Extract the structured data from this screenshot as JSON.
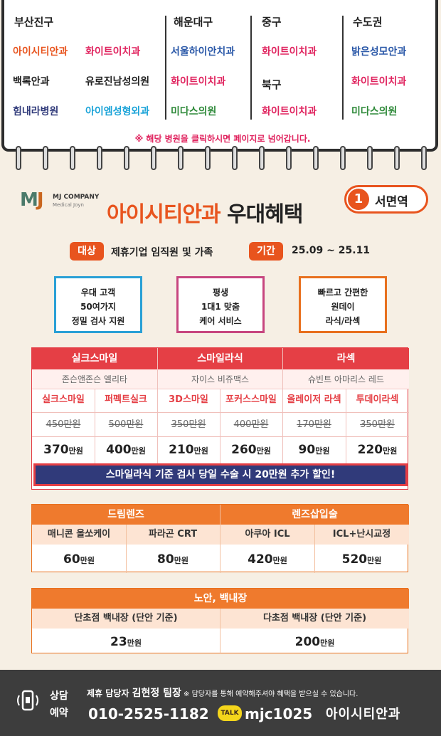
{
  "directory": {
    "columns": [
      {
        "region": "부산진구",
        "hospitals": [
          {
            "name": "아이시티안과",
            "color": "#e8541e"
          },
          {
            "name": "화이트이치과",
            "color": "#e0245f"
          },
          {
            "name": "백록안과",
            "color": "#222222"
          },
          {
            "name": "유로진남성의원",
            "color": "#222222"
          },
          {
            "name": "힘내라병원",
            "color": "#303a7a"
          },
          {
            "name": "아이엠성형외과",
            "color": "#1aa3d8"
          }
        ]
      },
      {
        "region": "해운대구",
        "hospitals": [
          {
            "name": "서울하이안치과",
            "color": "#2a58a8"
          },
          {
            "name": "화이트이치과",
            "color": "#e0245f"
          },
          {
            "name": "미다스의원",
            "color": "#2f8a3a"
          }
        ]
      },
      {
        "region": "중구",
        "hospitals": [
          {
            "name": "화이트이치과",
            "color": "#e0245f"
          }
        ],
        "region2": "북구",
        "hospitals2": [
          {
            "name": "화이트이치과",
            "color": "#e0245f"
          }
        ]
      },
      {
        "region": "수도권",
        "hospitals": [
          {
            "name": "밝은성모안과",
            "color": "#2a58a8"
          },
          {
            "name": "화이트이치과",
            "color": "#e0245f"
          },
          {
            "name": "미다스의원",
            "color": "#2f8a3a"
          }
        ]
      }
    ],
    "notice": "※ 해당 병원을 클릭하시면 페이지로 넘어갑니다."
  },
  "header": {
    "logo_mark": "MJ",
    "logo_company": "MJ COMPANY",
    "logo_sub": "Medical Joyn",
    "title_brand": "아이시티안과",
    "title_rest": " 우대혜택",
    "station_number": "1",
    "station_name": "서면역"
  },
  "eligibility": {
    "target_label": "대상",
    "target_value": "제휴기업 임직원 및 가족",
    "period_label": "기간",
    "period_value": "25.09 ~ 25.11"
  },
  "features": [
    {
      "lines": [
        "우대 고객",
        "50여가지",
        "정밀 검사 지원"
      ],
      "color": "#2aa0d6"
    },
    {
      "lines": [
        "평생",
        "1대1 맞춤",
        "케어 서비스"
      ],
      "color": "#c7457f"
    },
    {
      "lines": [
        "빠르고 간편한",
        "원데이",
        "라식/라섹"
      ],
      "color": "#e8701e"
    }
  ],
  "surgery_prices": {
    "groups": [
      {
        "name": "실크스마일",
        "equipment": "존슨앤존슨 엘리타"
      },
      {
        "name": "스마일라식",
        "equipment": "자이스 비쥬맥스"
      },
      {
        "name": "라섹",
        "equipment": "슈빈트 아마리스 레드"
      }
    ],
    "items": [
      {
        "name": "실크스마일",
        "old": "450만원",
        "new": "370",
        "unit": "만원"
      },
      {
        "name": "퍼펙트실크",
        "old": "500만원",
        "new": "400",
        "unit": "만원"
      },
      {
        "name": "3D스마일",
        "old": "350만원",
        "new": "210",
        "unit": "만원"
      },
      {
        "name": "포커스스마일",
        "old": "400만원",
        "new": "260",
        "unit": "만원"
      },
      {
        "name": "올레이저 라섹",
        "old": "170만원",
        "new": "90",
        "unit": "만원"
      },
      {
        "name": "투데이라섹",
        "old": "350만원",
        "new": "220",
        "unit": "만원"
      }
    ],
    "banner": "스마일라식 기준 검사 당일 수술 시 20만원 추가 할인!"
  },
  "lens_prices": {
    "groups": [
      {
        "name": "드림렌즈"
      },
      {
        "name": "렌즈삽입술"
      }
    ],
    "items": [
      {
        "name": "매니콘 올쏘케이",
        "price": "60",
        "unit": "만원"
      },
      {
        "name": "파라곤 CRT",
        "price": "80",
        "unit": "만원"
      },
      {
        "name": "아쿠아 ICL",
        "price": "420",
        "unit": "만원"
      },
      {
        "name": "ICL+난시교정",
        "price": "520",
        "unit": "만원"
      }
    ]
  },
  "cataract_prices": {
    "title": "노안, 백내장",
    "items": [
      {
        "name": "단초점 백내장 (단안 기준)",
        "price": "23",
        "unit": "만원"
      },
      {
        "name": "다초점 백내장 (단안 기준)",
        "price": "200",
        "unit": "만원"
      }
    ]
  },
  "footer": {
    "consult_label_1": "상담",
    "consult_label_2": "예약",
    "manager_prefix": "제휴 담당자 ",
    "manager_name": "김현정 팀장",
    "manager_note": " ※ 담당자를 통해 예약해주셔야 혜택을 받으실 수 있습니다.",
    "phone": "010-2525-1182",
    "talk_badge": "TALK",
    "kakao_id": "mjc1025",
    "brand": "아이시티안과"
  }
}
